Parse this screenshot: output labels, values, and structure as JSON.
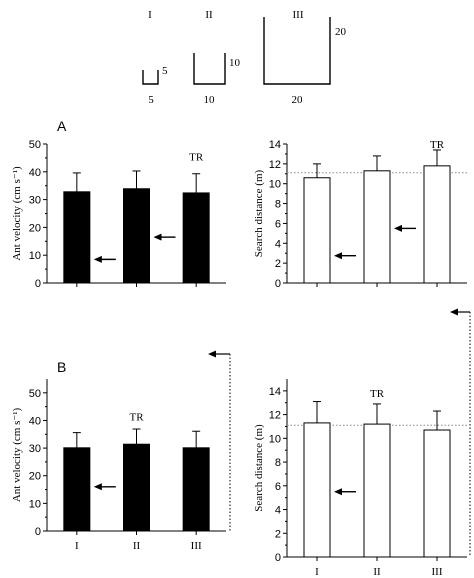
{
  "cups": [
    {
      "numeral": "I",
      "width_label": "5",
      "height_label": "5"
    },
    {
      "numeral": "II",
      "width_label": "10",
      "height_label": "10"
    },
    {
      "numeral": "III",
      "width_label": "20",
      "height_label": "20"
    }
  ],
  "panel_labels": {
    "a": "A",
    "b": "B"
  },
  "chart_data": [
    {
      "type": "bar",
      "panel": "A",
      "side": "left",
      "fill": "#000000",
      "categories": [
        "I",
        "II",
        "III"
      ],
      "values": [
        32.8,
        33.9,
        32.4
      ],
      "errors": [
        6.8,
        6.4,
        6.9
      ],
      "arrows": [
        8.5,
        16.5,
        null
      ],
      "ylabel": "Ant velocity (cm s⁻¹)",
      "ylim": [
        0,
        50
      ],
      "yticks": [
        "0",
        "10",
        "20",
        "30",
        "40",
        "50"
      ],
      "annotation": {
        "text": "TR",
        "category": 2,
        "value": 45.5
      },
      "show_xticklabels": false
    },
    {
      "type": "bar",
      "panel": "A",
      "side": "right",
      "fill": "#ffffff",
      "categories": [
        "I",
        "II",
        "III"
      ],
      "values": [
        10.6,
        11.3,
        11.8
      ],
      "errors": [
        1.4,
        1.5,
        1.6
      ],
      "arrows": [
        2.75,
        5.5,
        null
      ],
      "reference_line": 11.1,
      "ylabel": "Search distance (m)",
      "ylim": [
        0,
        14
      ],
      "yticks": [
        "0",
        "2",
        "4",
        "6",
        "8",
        "10",
        "12",
        "14"
      ],
      "annotation": {
        "text": "TR",
        "category": 2,
        "value": 14
      },
      "show_xticklabels": false
    },
    {
      "type": "bar",
      "panel": "B",
      "side": "left",
      "fill": "#000000",
      "categories": [
        "I",
        "II",
        "III"
      ],
      "values": [
        30.1,
        31.4,
        30.1
      ],
      "errors": [
        5.5,
        5.5,
        6.0
      ],
      "arrows": [
        16.0,
        null,
        null
      ],
      "ylabel": "Ant velocity (cm s⁻¹)",
      "ylim": [
        0,
        55
      ],
      "yticks": [
        "0",
        "10",
        "20",
        "30",
        "40",
        "50"
      ],
      "annotation": {
        "text": "TR",
        "category": 1,
        "value": 41.5
      },
      "show_xticklabels": true
    },
    {
      "type": "bar",
      "panel": "B",
      "side": "right",
      "fill": "#ffffff",
      "categories": [
        "I",
        "II",
        "III"
      ],
      "values": [
        11.3,
        11.2,
        10.7
      ],
      "errors": [
        1.8,
        1.7,
        1.6
      ],
      "arrows": [
        5.5,
        null,
        null
      ],
      "reference_line": 11.1,
      "ylabel": "Search distance (m)",
      "ylim": [
        0,
        15
      ],
      "yticks": [
        "0",
        "2",
        "4",
        "6",
        "8",
        "10",
        "12",
        "14"
      ],
      "annotation": {
        "text": "TR",
        "category": 1,
        "value": 13.8
      },
      "show_xticklabels": true
    }
  ]
}
